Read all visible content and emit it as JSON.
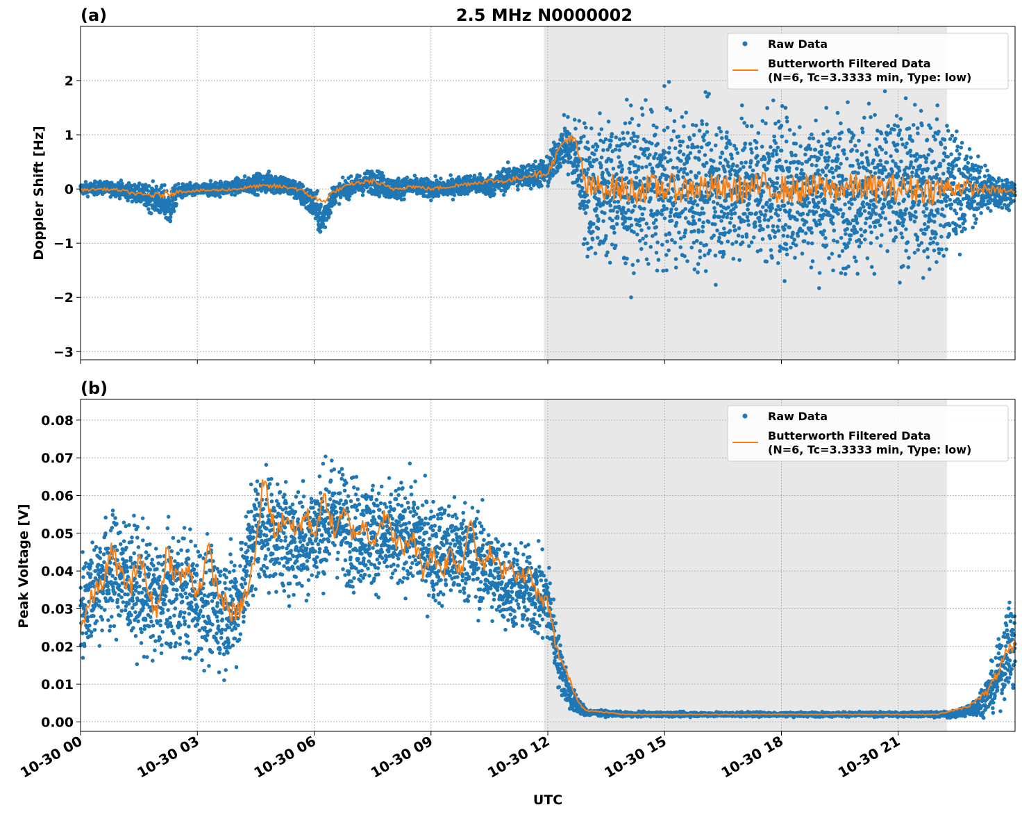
{
  "figure": {
    "title": "2.5 MHz N0000002",
    "xlabel": "UTC",
    "x_ticks": [
      "10-30 00",
      "10-30 03",
      "10-30 06",
      "10-30 09",
      "10-30 12",
      "10-30 15",
      "10-30 18",
      "10-30 21"
    ],
    "shaded_region_hours": [
      11.9,
      22.25
    ],
    "colors": {
      "raw": "#1f77b4",
      "filtered": "#ff7f0e",
      "shade": "#e8e8e8",
      "grid": "#b0b0b0"
    }
  },
  "legend": {
    "raw_label": "Raw Data",
    "filtered_label_1": "Butterworth Filtered Data",
    "filtered_label_2": "(N=6, Tc=3.3333 min, Type: low)"
  },
  "chart_data": [
    {
      "type": "scatter",
      "panel_label": "(a)",
      "ylabel": "Doppler Shift [Hz]",
      "xlim_hours": [
        0,
        24
      ],
      "ylim": [
        -3.15,
        3.0
      ],
      "y_ticks": [
        2,
        1,
        0,
        -1,
        -2,
        -3
      ],
      "y_tick_labels": [
        "2",
        "1",
        "0",
        "−1",
        "−2",
        "−3"
      ],
      "grid": true,
      "legend_position": "top-right",
      "series": [
        {
          "name": "Raw Data",
          "style": "points",
          "x_hours": [
            0,
            0.5,
            1,
            1.5,
            2,
            2.3,
            2.5,
            3,
            3.5,
            4,
            4.5,
            5,
            5.5,
            6,
            6.2,
            6.5,
            7,
            7.5,
            8,
            8.5,
            9,
            9.5,
            10,
            10.5,
            11,
            11.5,
            12,
            12.4,
            12.7,
            13,
            14,
            15,
            16,
            17,
            18,
            19,
            20,
            21,
            22,
            22.5,
            23,
            23.5,
            24
          ],
          "y_center": [
            0.0,
            0.02,
            0.0,
            -0.1,
            -0.2,
            -0.35,
            -0.05,
            -0.02,
            0.0,
            0.05,
            0.1,
            0.12,
            0.0,
            -0.3,
            -0.6,
            -0.1,
            0.05,
            0.15,
            0.0,
            0.05,
            0.0,
            0.02,
            0.1,
            0.05,
            0.2,
            0.25,
            0.3,
            0.85,
            0.6,
            0.0,
            0.0,
            0.0,
            0.0,
            0.0,
            0.0,
            0.0,
            0.0,
            0.0,
            0.0,
            0.0,
            0.0,
            -0.05,
            -0.05
          ],
          "y_spread": [
            0.1,
            0.1,
            0.12,
            0.15,
            0.25,
            0.3,
            0.12,
            0.1,
            0.12,
            0.12,
            0.15,
            0.18,
            0.15,
            0.25,
            0.3,
            0.15,
            0.15,
            0.2,
            0.18,
            0.15,
            0.15,
            0.15,
            0.15,
            0.18,
            0.2,
            0.2,
            0.25,
            0.35,
            0.6,
            1.1,
            1.2,
            1.2,
            1.2,
            1.2,
            1.2,
            1.2,
            1.2,
            1.2,
            1.2,
            0.9,
            0.5,
            0.3,
            0.2
          ]
        },
        {
          "name": "Butterworth Filtered Data (N=6, Tc=3.3333 min, Type: low)",
          "style": "line",
          "x_hours": [
            0,
            0.5,
            1,
            1.5,
            2,
            2.5,
            3,
            3.5,
            4,
            4.5,
            5,
            5.5,
            6,
            6.2,
            6.5,
            7,
            7.5,
            8,
            8.5,
            9,
            9.5,
            10,
            10.5,
            11,
            11.5,
            12,
            12.3,
            12.5,
            12.7,
            12.9,
            13,
            13.5,
            14,
            14.5,
            15,
            15.5,
            16,
            16.5,
            17,
            17.5,
            18,
            18.5,
            19,
            19.5,
            20,
            20.5,
            21,
            21.5,
            22,
            22.5,
            23,
            23.5,
            24
          ],
          "y": [
            -0.02,
            0.0,
            -0.02,
            -0.1,
            -0.12,
            -0.05,
            -0.03,
            -0.02,
            0.0,
            0.05,
            0.05,
            0.02,
            -0.15,
            -0.25,
            -0.05,
            0.1,
            0.15,
            0.0,
            0.05,
            0.0,
            0.05,
            0.1,
            0.15,
            0.15,
            0.25,
            0.3,
            0.75,
            0.95,
            0.85,
            0.3,
            0.0,
            0.05,
            -0.02,
            0.0,
            0.02,
            0.0,
            0.05,
            -0.02,
            0.0,
            0.05,
            0.0,
            -0.02,
            0.03,
            0.0,
            0.05,
            0.0,
            0.02,
            0.0,
            -0.02,
            0.05,
            0.0,
            -0.02,
            -0.05
          ]
        }
      ]
    },
    {
      "type": "scatter",
      "panel_label": "(b)",
      "ylabel": "Peak Voltage [V]",
      "xlim_hours": [
        0,
        24
      ],
      "ylim": [
        -0.0025,
        0.0855
      ],
      "y_ticks": [
        0.08,
        0.07,
        0.06,
        0.05,
        0.04,
        0.03,
        0.02,
        0.01,
        0.0
      ],
      "y_tick_labels": [
        "0.08",
        "0.07",
        "0.06",
        "0.05",
        "0.04",
        "0.03",
        "0.02",
        "0.01",
        "0.00"
      ],
      "grid": true,
      "legend_position": "top-right",
      "series": [
        {
          "name": "Raw Data",
          "style": "points",
          "x_hours": [
            0,
            0.5,
            1,
            1.5,
            2,
            2.5,
            3,
            3.5,
            4,
            4.5,
            5,
            5.5,
            6,
            6.5,
            7,
            7.5,
            8,
            8.5,
            9,
            9.5,
            10,
            10.5,
            11,
            11.5,
            12,
            12.3,
            12.6,
            13,
            14,
            15,
            16,
            17,
            18,
            19,
            20,
            21,
            22,
            22.5,
            23,
            23.5,
            23.8,
            24
          ],
          "y_center": [
            0.03,
            0.038,
            0.04,
            0.035,
            0.032,
            0.035,
            0.033,
            0.03,
            0.03,
            0.052,
            0.05,
            0.048,
            0.05,
            0.055,
            0.05,
            0.05,
            0.048,
            0.05,
            0.045,
            0.045,
            0.045,
            0.04,
            0.036,
            0.035,
            0.032,
            0.015,
            0.006,
            0.0025,
            0.002,
            0.002,
            0.002,
            0.002,
            0.002,
            0.002,
            0.002,
            0.002,
            0.002,
            0.002,
            0.004,
            0.01,
            0.02,
            0.02
          ],
          "y_spread": [
            0.012,
            0.013,
            0.014,
            0.014,
            0.014,
            0.014,
            0.014,
            0.014,
            0.013,
            0.013,
            0.013,
            0.013,
            0.013,
            0.013,
            0.013,
            0.012,
            0.012,
            0.012,
            0.012,
            0.012,
            0.012,
            0.011,
            0.01,
            0.01,
            0.01,
            0.006,
            0.003,
            0.0007,
            0.0005,
            0.0005,
            0.0005,
            0.0005,
            0.0005,
            0.0005,
            0.0005,
            0.0005,
            0.0006,
            0.0008,
            0.002,
            0.006,
            0.01,
            0.01
          ]
        },
        {
          "name": "Butterworth Filtered Data (N=6, Tc=3.3333 min, Type: low)",
          "style": "line",
          "x_hours": [
            0,
            0.3,
            0.6,
            0.8,
            1,
            1.3,
            1.5,
            1.8,
            2,
            2.2,
            2.5,
            2.8,
            3,
            3.3,
            3.5,
            3.8,
            4,
            4.3,
            4.5,
            4.7,
            5,
            5.3,
            5.5,
            5.8,
            6,
            6.3,
            6.5,
            6.8,
            7,
            7.3,
            7.5,
            7.8,
            8,
            8.3,
            8.5,
            8.8,
            9,
            9.3,
            9.5,
            9.8,
            10,
            10.3,
            10.5,
            10.8,
            11,
            11.3,
            11.5,
            11.8,
            12,
            12.2,
            12.4,
            12.6,
            12.8,
            13,
            13.5,
            14,
            15,
            16,
            17,
            18,
            19,
            20,
            21,
            22,
            22.4,
            22.8,
            23,
            23.3,
            23.5,
            23.8,
            24
          ],
          "y": [
            0.025,
            0.033,
            0.038,
            0.045,
            0.04,
            0.035,
            0.045,
            0.032,
            0.03,
            0.045,
            0.038,
            0.04,
            0.034,
            0.045,
            0.035,
            0.03,
            0.028,
            0.035,
            0.045,
            0.065,
            0.05,
            0.055,
            0.05,
            0.055,
            0.05,
            0.06,
            0.05,
            0.055,
            0.05,
            0.052,
            0.048,
            0.055,
            0.05,
            0.045,
            0.05,
            0.04,
            0.045,
            0.04,
            0.045,
            0.04,
            0.055,
            0.04,
            0.045,
            0.04,
            0.042,
            0.038,
            0.04,
            0.032,
            0.032,
            0.02,
            0.015,
            0.01,
            0.005,
            0.003,
            0.0025,
            0.002,
            0.002,
            0.002,
            0.002,
            0.002,
            0.002,
            0.002,
            0.002,
            0.002,
            0.003,
            0.004,
            0.006,
            0.008,
            0.012,
            0.018,
            0.02
          ]
        }
      ]
    }
  ]
}
